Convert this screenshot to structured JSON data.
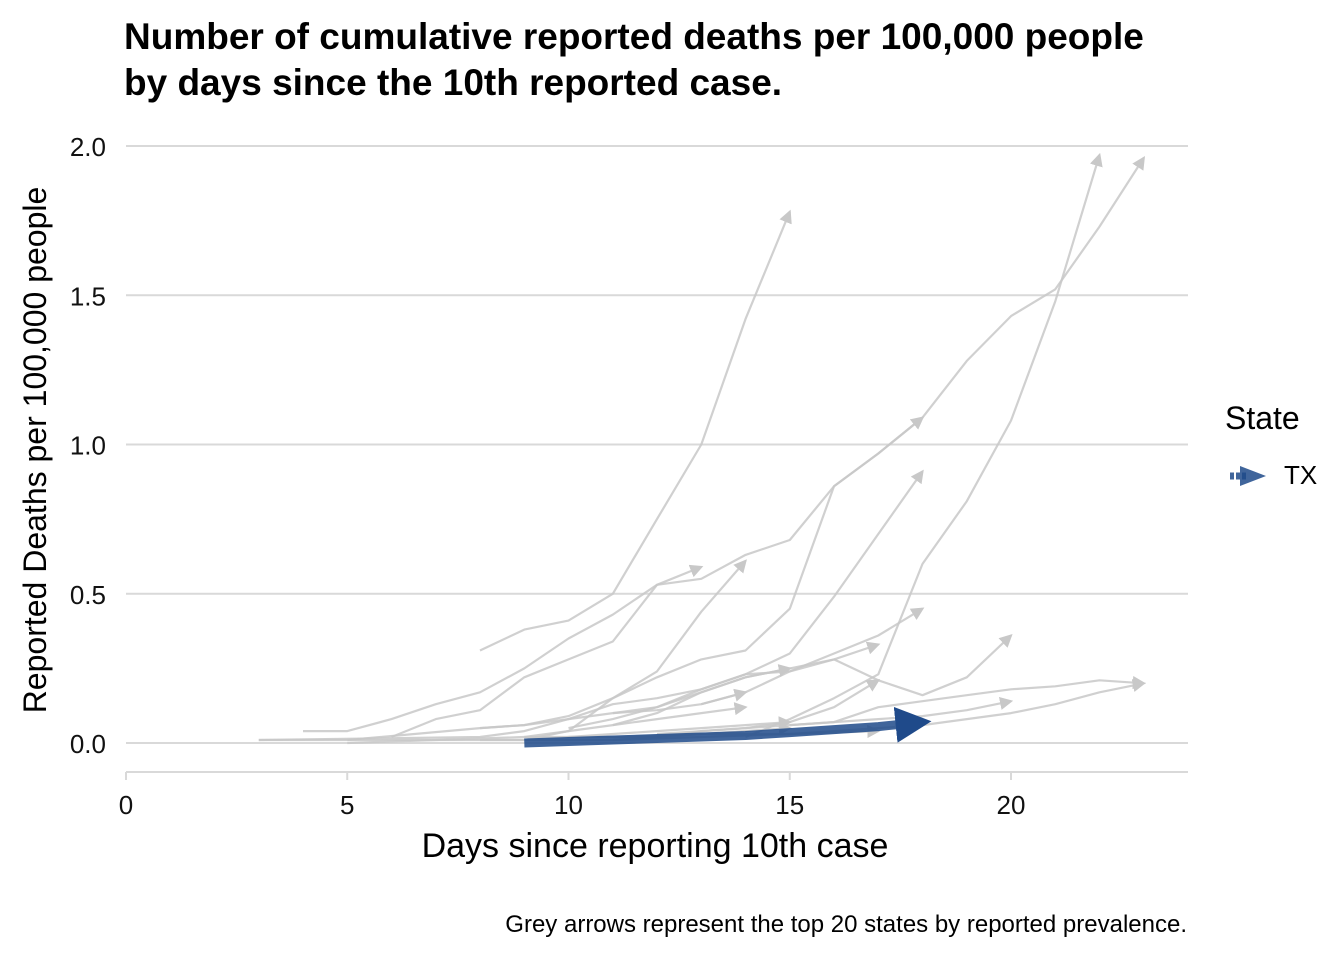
{
  "caption": "Grey arrows represent the top 20 states by reported prevalence.",
  "legend": {
    "title": "State",
    "items": [
      {
        "label": "TX",
        "color": "#1f4a8a"
      }
    ]
  },
  "colors": {
    "grey_series": "#c8c8c8",
    "highlight": "#1f4a8a",
    "grid": "#d9d9d9"
  },
  "chart_data": {
    "type": "line",
    "title": "Number of cumulative reported deaths per 100,000 people by days since the 10th reported case.",
    "title_lines": [
      "Number of cumulative reported deaths per 100,000 people",
      "by days since the 10th reported case."
    ],
    "xlabel": "Days since reporting 10th case",
    "ylabel": "Reported Deaths per 100,000 people",
    "xlim": [
      0,
      24
    ],
    "ylim": [
      -0.09,
      2.0
    ],
    "xticks": [
      0,
      5,
      10,
      15,
      20
    ],
    "yticks": [
      0.0,
      0.5,
      1.0,
      1.5,
      2.0
    ],
    "ytick_labels": [
      "0.0",
      "0.5",
      "1.0",
      "1.5",
      "2.0"
    ],
    "grid": "horizontal",
    "legend_position": "right",
    "highlight": {
      "name": "TX",
      "x": [
        9,
        10,
        11,
        12,
        13,
        14,
        15,
        16,
        17,
        18
      ],
      "y": [
        0.0,
        0.005,
        0.01,
        0.015,
        0.02,
        0.025,
        0.035,
        0.045,
        0.055,
        0.07
      ]
    },
    "background_series": [
      {
        "x": [
          8,
          9,
          10,
          11,
          12,
          13,
          14,
          15
        ],
        "y": [
          0.31,
          0.38,
          0.41,
          0.5,
          0.75,
          1.0,
          1.42,
          1.78
        ]
      },
      {
        "x": [
          14,
          15,
          16,
          17,
          18,
          19,
          20,
          21,
          22
        ],
        "y": [
          0.02,
          0.08,
          0.15,
          0.23,
          0.6,
          0.81,
          1.08,
          1.48,
          1.97
        ]
      },
      {
        "x": [
          5,
          8,
          9,
          10,
          11,
          12,
          13,
          14,
          15,
          16,
          17,
          18,
          19,
          20,
          21,
          22,
          23
        ],
        "y": [
          0.01,
          0.05,
          0.06,
          0.09,
          0.15,
          0.22,
          0.28,
          0.31,
          0.45,
          0.86,
          0.97,
          1.09,
          1.28,
          1.43,
          1.52,
          1.73,
          1.96
        ]
      },
      {
        "x": [
          4,
          5,
          6,
          7,
          8,
          9,
          10,
          11,
          12,
          13
        ],
        "y": [
          0.04,
          0.04,
          0.08,
          0.13,
          0.17,
          0.25,
          0.35,
          0.43,
          0.53,
          0.59
        ]
      },
      {
        "x": [
          6,
          7,
          8,
          9,
          10,
          11,
          12,
          13,
          14,
          15,
          16,
          17,
          18
        ],
        "y": [
          0.02,
          0.08,
          0.11,
          0.22,
          0.28,
          0.34,
          0.53,
          0.55,
          0.63,
          0.68,
          0.86,
          0.97,
          1.09
        ]
      },
      {
        "x": [
          9,
          10,
          11,
          12,
          13,
          14
        ],
        "y": [
          0.01,
          0.04,
          0.15,
          0.24,
          0.44,
          0.61
        ]
      },
      {
        "x": [
          11,
          12,
          13,
          14,
          15,
          16,
          17,
          18
        ],
        "y": [
          0.1,
          0.12,
          0.18,
          0.23,
          0.3,
          0.49,
          0.7,
          0.91
        ]
      },
      {
        "x": [
          3,
          8,
          9,
          10,
          11,
          12,
          13,
          14,
          15,
          16,
          17,
          18
        ],
        "y": [
          0.01,
          0.02,
          0.04,
          0.08,
          0.13,
          0.15,
          0.18,
          0.23,
          0.24,
          0.3,
          0.36,
          0.45
        ]
      },
      {
        "x": [
          13,
          14,
          15,
          16,
          17,
          18,
          19,
          20
        ],
        "y": [
          0.13,
          0.17,
          0.24,
          0.28,
          0.21,
          0.16,
          0.22,
          0.36
        ]
      },
      {
        "x": [
          11,
          12,
          13,
          14,
          15,
          16,
          17
        ],
        "y": [
          0.06,
          0.1,
          0.17,
          0.22,
          0.25,
          0.28,
          0.33
        ]
      },
      {
        "x": [
          10,
          11,
          12,
          13,
          14,
          15
        ],
        "y": [
          0.05,
          0.08,
          0.12,
          0.17,
          0.22,
          0.25
        ]
      },
      {
        "x": [
          8,
          9,
          10,
          11,
          12,
          13,
          14
        ],
        "y": [
          0.05,
          0.06,
          0.08,
          0.1,
          0.11,
          0.13,
          0.17
        ]
      },
      {
        "x": [
          9,
          10,
          11,
          12,
          13,
          14
        ],
        "y": [
          0.02,
          0.04,
          0.06,
          0.08,
          0.1,
          0.12
        ]
      },
      {
        "x": [
          11,
          12,
          13,
          14,
          15,
          16,
          17
        ],
        "y": [
          0.01,
          0.02,
          0.04,
          0.05,
          0.07,
          0.12,
          0.21
        ]
      },
      {
        "x": [
          12,
          13,
          14,
          15,
          16,
          17,
          18,
          19,
          20
        ],
        "y": [
          0.03,
          0.04,
          0.05,
          0.06,
          0.07,
          0.08,
          0.09,
          0.11,
          0.14
        ]
      },
      {
        "x": [
          15,
          16,
          17,
          18,
          19,
          20,
          21,
          22,
          23
        ],
        "y": [
          0.06,
          0.07,
          0.12,
          0.14,
          0.16,
          0.18,
          0.19,
          0.21,
          0.2
        ]
      },
      {
        "x": [
          8,
          9,
          10,
          11,
          12,
          13,
          14,
          15,
          16,
          17,
          18,
          19,
          20,
          21,
          22,
          23
        ],
        "y": [
          0.01,
          0.01,
          0.02,
          0.02,
          0.02,
          0.03,
          0.03,
          0.03,
          0.04,
          0.05,
          0.06,
          0.08,
          0.1,
          0.13,
          0.17,
          0.2
        ]
      },
      {
        "x": [
          10,
          11,
          12,
          13,
          14,
          15
        ],
        "y": [
          0.02,
          0.03,
          0.04,
          0.05,
          0.06,
          0.07
        ]
      },
      {
        "x": [
          3,
          5,
          7,
          9,
          11,
          13,
          15
        ],
        "y": [
          0.01,
          0.01,
          0.01,
          0.02,
          0.02,
          0.03,
          0.05
        ]
      },
      {
        "x": [
          5,
          7,
          9,
          11,
          13,
          15,
          17
        ],
        "y": [
          0.0,
          0.01,
          0.01,
          0.01,
          0.02,
          0.03,
          0.04
        ]
      }
    ]
  }
}
